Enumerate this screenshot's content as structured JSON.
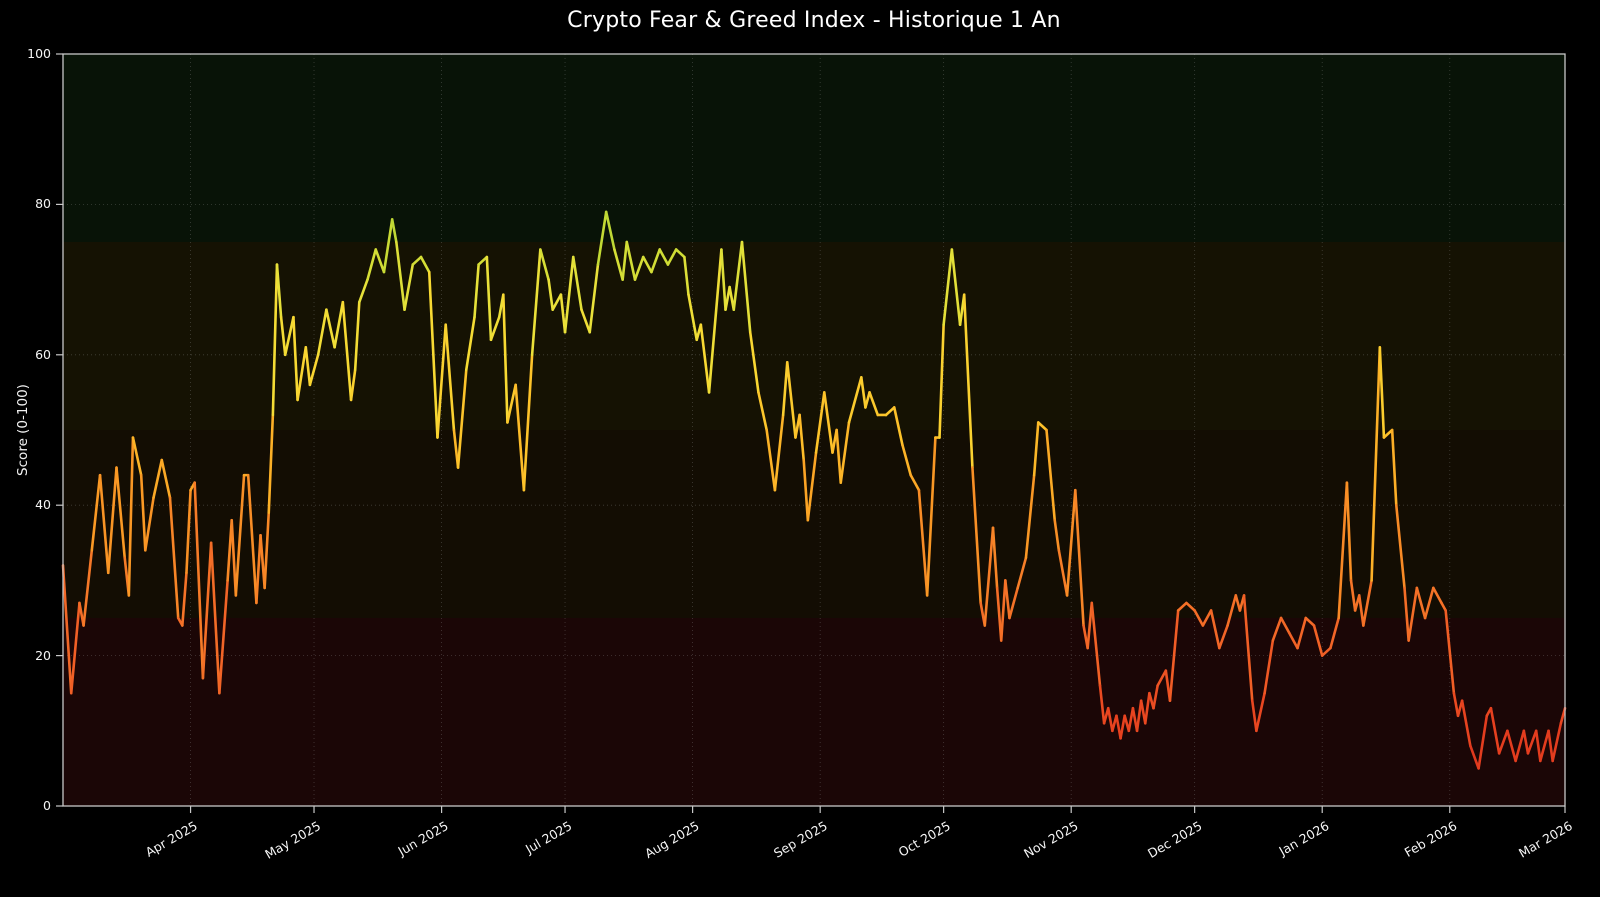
{
  "title": "Crypto Fear & Greed Index - Historique 1 An",
  "colors": {
    "figure_background": "#000000",
    "axes_spine": "#c8c8c8",
    "grid": "#9a9a9a",
    "text": "#ffffff"
  },
  "chart_data": {
    "type": "line",
    "title": "Crypto Fear & Greed Index - Historique 1 An",
    "xlabel": "",
    "ylabel": "Score (0-100)",
    "ylim": [
      0,
      100
    ],
    "y_ticks": [
      0,
      20,
      40,
      60,
      80,
      100
    ],
    "grid": true,
    "legend": "none",
    "x_range": [
      "2025-03-01",
      "2026-03-01"
    ],
    "x_ticks": [
      {
        "date": "2025-04-01",
        "label": "Apr 2025"
      },
      {
        "date": "2025-05-01",
        "label": "May 2025"
      },
      {
        "date": "2025-06-01",
        "label": "Jun 2025"
      },
      {
        "date": "2025-07-01",
        "label": "Jul 2025"
      },
      {
        "date": "2025-08-01",
        "label": "Aug 2025"
      },
      {
        "date": "2025-09-01",
        "label": "Sep 2025"
      },
      {
        "date": "2025-10-01",
        "label": "Oct 2025"
      },
      {
        "date": "2025-11-01",
        "label": "Nov 2025"
      },
      {
        "date": "2025-12-01",
        "label": "Dec 2025"
      },
      {
        "date": "2026-01-01",
        "label": "Jan 2026"
      },
      {
        "date": "2026-02-01",
        "label": "Feb 2026"
      },
      {
        "date": "2026-03-01",
        "label": "Mar 2026"
      }
    ],
    "background_bands": [
      {
        "from": 0,
        "to": 25,
        "color": "#1b0606",
        "meaning": "extreme fear zone"
      },
      {
        "from": 25,
        "to": 50,
        "color": "#130d03",
        "meaning": "fear zone"
      },
      {
        "from": 50,
        "to": 75,
        "color": "#151203",
        "meaning": "greed zone"
      },
      {
        "from": 75,
        "to": 100,
        "color": "#081307",
        "meaning": "extreme greed zone"
      }
    ],
    "line_color_by_value_stops": [
      [
        0,
        "#d92b1c"
      ],
      [
        10,
        "#e6401f"
      ],
      [
        20,
        "#f05c26"
      ],
      [
        30,
        "#f67b28"
      ],
      [
        40,
        "#fa9c24"
      ],
      [
        50,
        "#fdc029"
      ],
      [
        60,
        "#f8da33"
      ],
      [
        68,
        "#e8e13a"
      ],
      [
        75,
        "#c6db33"
      ],
      [
        85,
        "#8ec73e"
      ],
      [
        100,
        "#4daf4a"
      ]
    ],
    "points": [
      [
        "2025-03-01",
        32
      ],
      [
        "2025-03-03",
        15
      ],
      [
        "2025-03-05",
        27
      ],
      [
        "2025-03-06",
        24
      ],
      [
        "2025-03-08",
        34
      ],
      [
        "2025-03-10",
        44
      ],
      [
        "2025-03-12",
        31
      ],
      [
        "2025-03-14",
        45
      ],
      [
        "2025-03-16",
        33
      ],
      [
        "2025-03-17",
        28
      ],
      [
        "2025-03-18",
        49
      ],
      [
        "2025-03-20",
        44
      ],
      [
        "2025-03-21",
        34
      ],
      [
        "2025-03-23",
        41
      ],
      [
        "2025-03-25",
        46
      ],
      [
        "2025-03-27",
        41
      ],
      [
        "2025-03-29",
        25
      ],
      [
        "2025-03-30",
        24
      ],
      [
        "2025-03-31",
        31
      ],
      [
        "2025-04-01",
        42
      ],
      [
        "2025-04-02",
        43
      ],
      [
        "2025-04-04",
        17
      ],
      [
        "2025-04-06",
        35
      ],
      [
        "2025-04-08",
        15
      ],
      [
        "2025-04-10",
        30
      ],
      [
        "2025-04-11",
        38
      ],
      [
        "2025-04-12",
        28
      ],
      [
        "2025-04-14",
        44
      ],
      [
        "2025-04-15",
        44
      ],
      [
        "2025-04-17",
        27
      ],
      [
        "2025-04-18",
        36
      ],
      [
        "2025-04-19",
        29
      ],
      [
        "2025-04-20",
        39
      ],
      [
        "2025-04-21",
        52
      ],
      [
        "2025-04-22",
        72
      ],
      [
        "2025-04-23",
        65
      ],
      [
        "2025-04-24",
        60
      ],
      [
        "2025-04-26",
        65
      ],
      [
        "2025-04-27",
        54
      ],
      [
        "2025-04-29",
        61
      ],
      [
        "2025-04-30",
        56
      ],
      [
        "2025-05-02",
        60
      ],
      [
        "2025-05-04",
        66
      ],
      [
        "2025-05-06",
        61
      ],
      [
        "2025-05-08",
        67
      ],
      [
        "2025-05-10",
        54
      ],
      [
        "2025-05-11",
        58
      ],
      [
        "2025-05-12",
        67
      ],
      [
        "2025-05-14",
        70
      ],
      [
        "2025-05-16",
        74
      ],
      [
        "2025-05-18",
        71
      ],
      [
        "2025-05-20",
        78
      ],
      [
        "2025-05-21",
        75
      ],
      [
        "2025-05-23",
        66
      ],
      [
        "2025-05-25",
        72
      ],
      [
        "2025-05-27",
        73
      ],
      [
        "2025-05-29",
        71
      ],
      [
        "2025-05-31",
        49
      ],
      [
        "2025-06-02",
        64
      ],
      [
        "2025-06-04",
        50
      ],
      [
        "2025-06-05",
        45
      ],
      [
        "2025-06-07",
        58
      ],
      [
        "2025-06-09",
        65
      ],
      [
        "2025-06-10",
        72
      ],
      [
        "2025-06-12",
        73
      ],
      [
        "2025-06-13",
        62
      ],
      [
        "2025-06-15",
        65
      ],
      [
        "2025-06-16",
        68
      ],
      [
        "2025-06-17",
        51
      ],
      [
        "2025-06-19",
        56
      ],
      [
        "2025-06-21",
        42
      ],
      [
        "2025-06-23",
        60
      ],
      [
        "2025-06-25",
        74
      ],
      [
        "2025-06-27",
        70
      ],
      [
        "2025-06-28",
        66
      ],
      [
        "2025-06-30",
        68
      ],
      [
        "2025-07-01",
        63
      ],
      [
        "2025-07-03",
        73
      ],
      [
        "2025-07-05",
        66
      ],
      [
        "2025-07-07",
        63
      ],
      [
        "2025-07-09",
        72
      ],
      [
        "2025-07-11",
        79
      ],
      [
        "2025-07-13",
        74
      ],
      [
        "2025-07-15",
        70
      ],
      [
        "2025-07-16",
        75
      ],
      [
        "2025-07-18",
        70
      ],
      [
        "2025-07-20",
        73
      ],
      [
        "2025-07-22",
        71
      ],
      [
        "2025-07-24",
        74
      ],
      [
        "2025-07-26",
        72
      ],
      [
        "2025-07-28",
        74
      ],
      [
        "2025-07-30",
        73
      ],
      [
        "2025-07-31",
        68
      ],
      [
        "2025-08-02",
        62
      ],
      [
        "2025-08-03",
        64
      ],
      [
        "2025-08-05",
        55
      ],
      [
        "2025-08-08",
        74
      ],
      [
        "2025-08-09",
        66
      ],
      [
        "2025-08-10",
        69
      ],
      [
        "2025-08-11",
        66
      ],
      [
        "2025-08-13",
        75
      ],
      [
        "2025-08-15",
        63
      ],
      [
        "2025-08-17",
        55
      ],
      [
        "2025-08-19",
        50
      ],
      [
        "2025-08-21",
        42
      ],
      [
        "2025-08-23",
        52
      ],
      [
        "2025-08-24",
        59
      ],
      [
        "2025-08-26",
        49
      ],
      [
        "2025-08-27",
        52
      ],
      [
        "2025-08-28",
        46
      ],
      [
        "2025-08-29",
        38
      ],
      [
        "2025-08-31",
        47
      ],
      [
        "2025-09-02",
        55
      ],
      [
        "2025-09-04",
        47
      ],
      [
        "2025-09-05",
        50
      ],
      [
        "2025-09-06",
        43
      ],
      [
        "2025-09-08",
        51
      ],
      [
        "2025-09-11",
        57
      ],
      [
        "2025-09-12",
        53
      ],
      [
        "2025-09-13",
        55
      ],
      [
        "2025-09-15",
        52
      ],
      [
        "2025-09-17",
        52
      ],
      [
        "2025-09-19",
        53
      ],
      [
        "2025-09-21",
        48
      ],
      [
        "2025-09-23",
        44
      ],
      [
        "2025-09-25",
        42
      ],
      [
        "2025-09-27",
        28
      ],
      [
        "2025-09-29",
        49
      ],
      [
        "2025-09-30",
        49
      ],
      [
        "2025-10-01",
        64
      ],
      [
        "2025-10-03",
        74
      ],
      [
        "2025-10-05",
        64
      ],
      [
        "2025-10-06",
        68
      ],
      [
        "2025-10-08",
        45
      ],
      [
        "2025-10-10",
        27
      ],
      [
        "2025-10-11",
        24
      ],
      [
        "2025-10-13",
        37
      ],
      [
        "2025-10-14",
        29
      ],
      [
        "2025-10-15",
        22
      ],
      [
        "2025-10-16",
        30
      ],
      [
        "2025-10-17",
        25
      ],
      [
        "2025-10-19",
        29
      ],
      [
        "2025-10-21",
        33
      ],
      [
        "2025-10-23",
        44
      ],
      [
        "2025-10-24",
        51
      ],
      [
        "2025-10-26",
        50
      ],
      [
        "2025-10-28",
        38
      ],
      [
        "2025-10-29",
        34
      ],
      [
        "2025-10-31",
        28
      ],
      [
        "2025-11-02",
        42
      ],
      [
        "2025-11-04",
        24
      ],
      [
        "2025-11-05",
        21
      ],
      [
        "2025-11-06",
        27
      ],
      [
        "2025-11-08",
        16
      ],
      [
        "2025-11-09",
        11
      ],
      [
        "2025-11-10",
        13
      ],
      [
        "2025-11-11",
        10
      ],
      [
        "2025-11-12",
        12
      ],
      [
        "2025-11-13",
        9
      ],
      [
        "2025-11-14",
        12
      ],
      [
        "2025-11-15",
        10
      ],
      [
        "2025-11-16",
        13
      ],
      [
        "2025-11-17",
        10
      ],
      [
        "2025-11-18",
        14
      ],
      [
        "2025-11-19",
        11
      ],
      [
        "2025-11-20",
        15
      ],
      [
        "2025-11-21",
        13
      ],
      [
        "2025-11-22",
        16
      ],
      [
        "2025-11-24",
        18
      ],
      [
        "2025-11-25",
        14
      ],
      [
        "2025-11-27",
        26
      ],
      [
        "2025-11-29",
        27
      ],
      [
        "2025-12-01",
        26
      ],
      [
        "2025-12-03",
        24
      ],
      [
        "2025-12-05",
        26
      ],
      [
        "2025-12-07",
        21
      ],
      [
        "2025-12-09",
        24
      ],
      [
        "2025-12-11",
        28
      ],
      [
        "2025-12-12",
        26
      ],
      [
        "2025-12-13",
        28
      ],
      [
        "2025-12-15",
        14
      ],
      [
        "2025-12-16",
        10
      ],
      [
        "2025-12-18",
        15
      ],
      [
        "2025-12-20",
        22
      ],
      [
        "2025-12-22",
        25
      ],
      [
        "2025-12-24",
        23
      ],
      [
        "2025-12-26",
        21
      ],
      [
        "2025-12-28",
        25
      ],
      [
        "2025-12-30",
        24
      ],
      [
        "2026-01-01",
        20
      ],
      [
        "2026-01-03",
        21
      ],
      [
        "2026-01-05",
        25
      ],
      [
        "2026-01-07",
        43
      ],
      [
        "2026-01-08",
        30
      ],
      [
        "2026-01-09",
        26
      ],
      [
        "2026-01-10",
        28
      ],
      [
        "2026-01-11",
        24
      ],
      [
        "2026-01-13",
        30
      ],
      [
        "2026-01-15",
        61
      ],
      [
        "2026-01-16",
        49
      ],
      [
        "2026-01-18",
        50
      ],
      [
        "2026-01-19",
        40
      ],
      [
        "2026-01-21",
        29
      ],
      [
        "2026-01-22",
        22
      ],
      [
        "2026-01-24",
        29
      ],
      [
        "2026-01-26",
        25
      ],
      [
        "2026-01-28",
        29
      ],
      [
        "2026-01-30",
        27
      ],
      [
        "2026-01-31",
        26
      ],
      [
        "2026-02-02",
        15
      ],
      [
        "2026-02-03",
        12
      ],
      [
        "2026-02-04",
        14
      ],
      [
        "2026-02-06",
        8
      ],
      [
        "2026-02-08",
        5
      ],
      [
        "2026-02-10",
        12
      ],
      [
        "2026-02-11",
        13
      ],
      [
        "2026-02-13",
        7
      ],
      [
        "2026-02-15",
        10
      ],
      [
        "2026-02-17",
        6
      ],
      [
        "2026-02-19",
        10
      ],
      [
        "2026-02-20",
        7
      ],
      [
        "2026-02-22",
        10
      ],
      [
        "2026-02-23",
        6
      ],
      [
        "2026-02-25",
        10
      ],
      [
        "2026-02-26",
        6
      ],
      [
        "2026-02-28",
        11
      ],
      [
        "2026-03-01",
        13
      ]
    ]
  }
}
